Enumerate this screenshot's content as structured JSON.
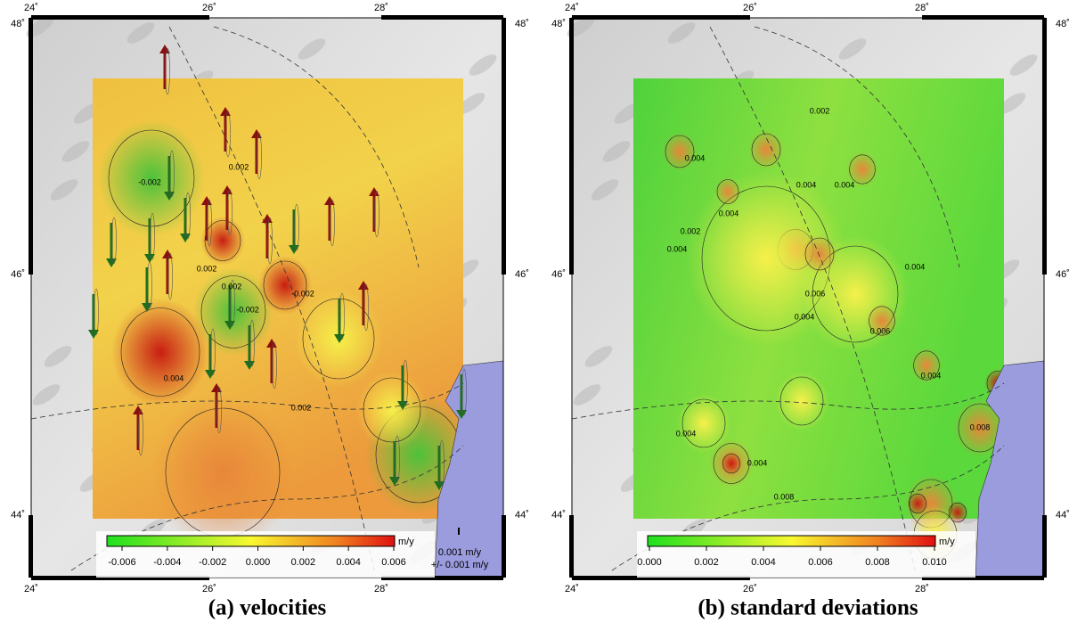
{
  "panels": [
    {
      "caption": "(a) velocities",
      "lon_labels": [
        "24˚",
        "26˚",
        "28˚"
      ],
      "lat_labels": [
        "48˚",
        "46˚",
        "44˚"
      ],
      "colorbar": {
        "unit": "m/y",
        "ticks": [
          "-0.006",
          "-0.004",
          "-0.002",
          "0.000",
          "0.002",
          "0.004",
          "0.006"
        ]
      },
      "legend": [
        "0.001 m/y",
        "+/- 0.001 m/y"
      ],
      "contour_labels": [
        "-0.002",
        "0.002",
        "0.004",
        "0.002",
        "-0.002",
        "0.002",
        "-0.002",
        "0.002"
      ]
    },
    {
      "caption": "(b) standard deviations",
      "lon_labels": [
        "24˚",
        "26˚",
        "28˚"
      ],
      "lat_labels": [
        "48˚",
        "46˚",
        "44˚"
      ],
      "colorbar": {
        "unit": "m/y",
        "ticks": [
          "0.000",
          "0.002",
          "0.004",
          "0.006",
          "0.008",
          "0.010"
        ]
      },
      "contour_labels": [
        "0.002",
        "0.004",
        "0.004",
        "0.004",
        "0.004",
        "0.006",
        "0.004",
        "0.006",
        "0.004",
        "0.004",
        "0.004",
        "0.008",
        "0.008",
        "0.004",
        "0.004",
        "0.002"
      ]
    }
  ]
}
